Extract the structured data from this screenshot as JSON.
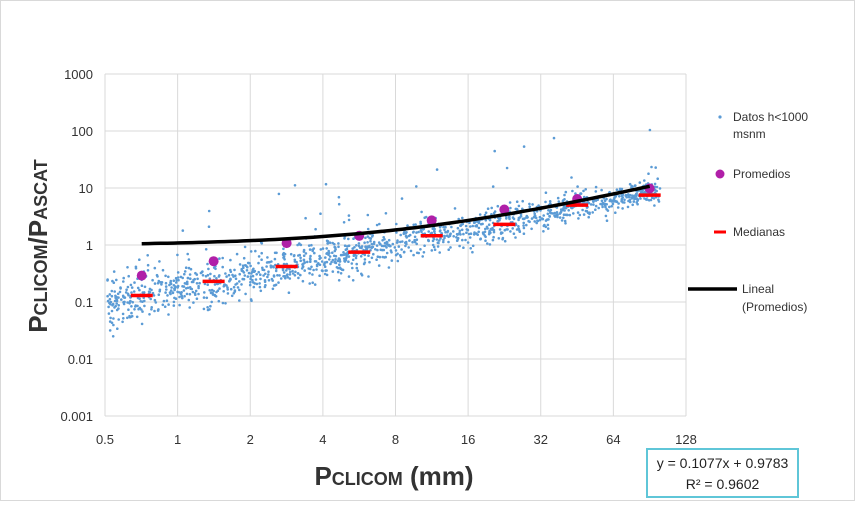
{
  "chart_data": {
    "type": "scatter",
    "x_scale": "log2",
    "y_scale": "log10",
    "xlim": [
      0.5,
      128
    ],
    "ylim": [
      0.001,
      1000
    ],
    "x_ticks": [
      "0.5",
      "1",
      "2",
      "4",
      "8",
      "16",
      "32",
      "64",
      "128"
    ],
    "x_tick_values": [
      0.5,
      1,
      2,
      4,
      8,
      16,
      32,
      64,
      128
    ],
    "y_ticks": [
      "0.001",
      "0.01",
      "0.1",
      "1",
      "10",
      "100",
      "1000"
    ],
    "y_tick_values": [
      0.001,
      0.01,
      0.1,
      1,
      10,
      100,
      1000
    ],
    "xlabel": {
      "main": "P",
      "sub": "CLICOM",
      "unit": " (mm)"
    },
    "ylabel": {
      "main1": "P",
      "sub1": "CLICOM",
      "sep": "/P",
      "sub2": "ASCAT"
    },
    "grid": true,
    "legend_position": "right",
    "series": [
      {
        "name": "Datos h<1000 msnm",
        "kind": "scatter",
        "color": "#5b9bd5",
        "clusters": [
          {
            "x": 0.5,
            "y": 0.09
          },
          {
            "x": 0.71,
            "y": 0.13
          },
          {
            "x": 1.41,
            "y": 0.22
          },
          {
            "x": 2.83,
            "y": 0.4
          },
          {
            "x": 5.66,
            "y": 0.75
          },
          {
            "x": 11.3,
            "y": 1.5
          },
          {
            "x": 22.6,
            "y": 2.5
          },
          {
            "x": 45.3,
            "y": 5.0
          },
          {
            "x": 90.5,
            "y": 8.5
          }
        ]
      },
      {
        "name": "Promedios",
        "kind": "marker",
        "color": "#b01fa8",
        "points": [
          {
            "x": 0.71,
            "y": 0.29
          },
          {
            "x": 1.41,
            "y": 0.52
          },
          {
            "x": 2.83,
            "y": 1.08
          },
          {
            "x": 5.66,
            "y": 1.45
          },
          {
            "x": 11.3,
            "y": 2.7
          },
          {
            "x": 22.6,
            "y": 4.2
          },
          {
            "x": 45.3,
            "y": 6.4
          },
          {
            "x": 90.5,
            "y": 9.8
          }
        ]
      },
      {
        "name": "Medianas",
        "kind": "dash",
        "color": "#ff0000",
        "points": [
          {
            "x": 0.71,
            "y": 0.13
          },
          {
            "x": 1.41,
            "y": 0.23
          },
          {
            "x": 2.83,
            "y": 0.42
          },
          {
            "x": 5.66,
            "y": 0.75
          },
          {
            "x": 11.3,
            "y": 1.45
          },
          {
            "x": 22.6,
            "y": 2.3
          },
          {
            "x": 45.3,
            "y": 5.0
          },
          {
            "x": 90.5,
            "y": 7.5
          }
        ]
      },
      {
        "name": "Lineal\n(Promedios)",
        "kind": "trendline",
        "color": "#000000",
        "slope": 0.1077,
        "intercept": 0.9783,
        "x_range": [
          0.71,
          90.5
        ]
      }
    ],
    "annotation": {
      "equation": "y = 0.1077x + 0.9783",
      "r2": "R² = 0.9602"
    }
  },
  "legend": {
    "datos_line1": "Datos h<1000",
    "datos_line2": "msnm",
    "promedios": "Promedios",
    "medianas": "Medianas",
    "lineal_line1": "Lineal",
    "lineal_line2": "(Promedios)"
  },
  "colors": {
    "data": "#5b9bd5",
    "mean": "#b01fa8",
    "median": "#ff0000",
    "trend": "#000000",
    "box": "#5fc6d8"
  }
}
